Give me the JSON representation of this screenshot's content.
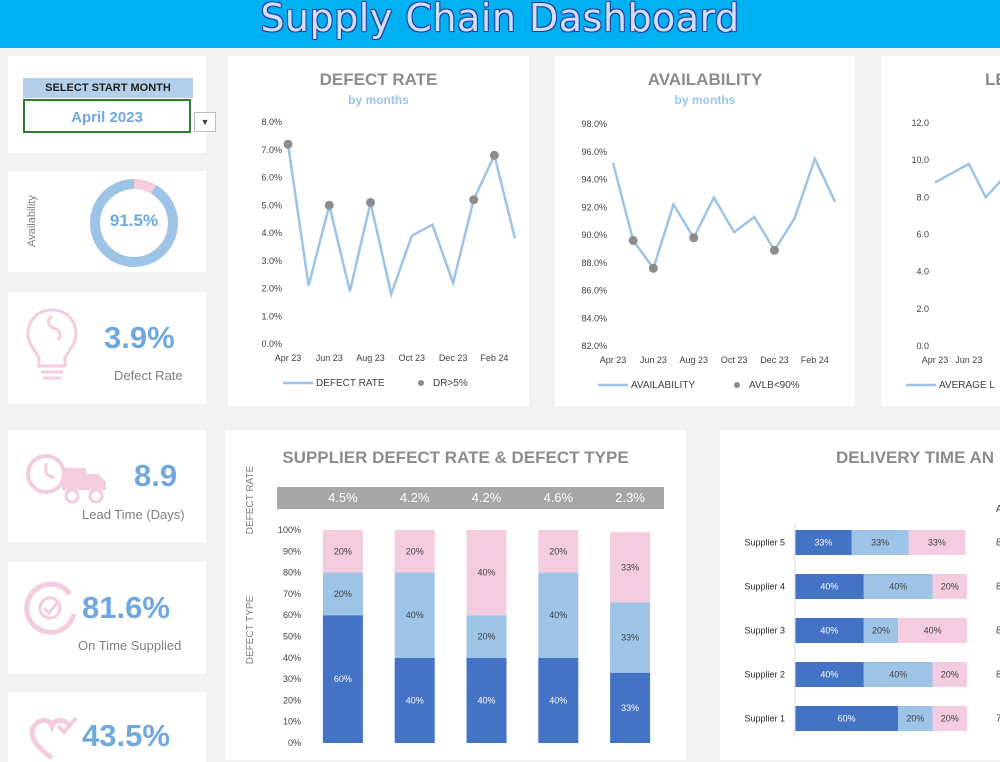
{
  "header": {
    "title": "Supply Chain Dashboard"
  },
  "selector": {
    "label": "SELECT START MONTH",
    "value": "April 2023"
  },
  "kpis": {
    "availability": {
      "label": "Availability",
      "value": "91.5%",
      "fraction": 0.915
    },
    "defect_rate": {
      "label": "Defect Rate",
      "value": "3.9%"
    },
    "lead_time": {
      "label": "Lead Time (Days)",
      "value": "8.9"
    },
    "on_time": {
      "label": "On Time Supplied",
      "value": "81.6%"
    },
    "fourth": {
      "value": "43.5%"
    }
  },
  "colors": {
    "header": "#00b0f0",
    "blue": "#9dc3e6",
    "dark_blue": "#4472c4",
    "pink": "#f4cce0",
    "gray_marker": "#8c8c8c"
  },
  "icons": [
    "bulb-icon",
    "clock-truck-icon",
    "clock-check-icon",
    "dropdown-arrow-icon"
  ],
  "chart_data": [
    {
      "type": "line",
      "title": "DEFECT RATE",
      "subtitle": "by months",
      "x_ticks": [
        "Apr 23",
        "Jun 23",
        "Aug 23",
        "Oct 23",
        "Dec 23",
        "Feb 24"
      ],
      "y_ticks": [
        "8.0%",
        "7.0%",
        "6.0%",
        "5.0%",
        "4.0%",
        "3.0%",
        "2.0%",
        "1.0%",
        "0.0%"
      ],
      "ylim": [
        0,
        8
      ],
      "values": [
        7.2,
        2.1,
        5.0,
        1.9,
        5.1,
        1.8,
        3.9,
        4.3,
        2.2,
        5.2,
        6.8,
        3.8
      ],
      "marker_threshold": 5,
      "legend": [
        "DEFECT RATE",
        "DR>5%"
      ]
    },
    {
      "type": "line",
      "title": "AVAILABILITY",
      "subtitle": "by months",
      "x_ticks": [
        "Apr 23",
        "Jun 23",
        "Aug 23",
        "Oct 23",
        "Dec 23",
        "Feb 24"
      ],
      "y_ticks": [
        "98.0%",
        "96.0%",
        "94.0%",
        "92.0%",
        "90.0%",
        "88.0%",
        "86.0%",
        "84.0%",
        "82.0%"
      ],
      "ylim": [
        82,
        98
      ],
      "values": [
        95.2,
        89.6,
        87.6,
        92.2,
        89.8,
        92.7,
        90.2,
        91.3,
        88.9,
        91.2,
        95.5,
        92.4
      ],
      "marker_below": 90,
      "legend": [
        "AVAILABILITY",
        "AVLB<90%"
      ]
    },
    {
      "type": "line",
      "title": "LE",
      "x_ticks": [
        "Apr 23",
        "Jun 23"
      ],
      "y_ticks": [
        "12.0",
        "10.0",
        "8.0",
        "6.0",
        "4.0",
        "2.0",
        "0.0"
      ],
      "ylim": [
        0,
        12
      ],
      "values": [
        8.8,
        9.3,
        9.8,
        8.0,
        9.0
      ],
      "legend": [
        "AVERAGE L"
      ]
    },
    {
      "type": "bar",
      "title": "SUPPLIER DEFECT RATE & DEFECT TYPE",
      "ylabel_top": "DEFECT RATE",
      "ylabel": "DEFECT TYPE",
      "defect_rates": [
        "4.5%",
        "4.2%",
        "4.2%",
        "4.6%",
        "2.3%"
      ],
      "y_ticks": [
        "100%",
        "90%",
        "80%",
        "70%",
        "60%",
        "50%",
        "40%",
        "30%",
        "20%",
        "10%",
        "0%"
      ],
      "series": [
        {
          "values": [
            60,
            40,
            40,
            40,
            33
          ],
          "labels": [
            "60%",
            "40%",
            "40%",
            "40%",
            "33%"
          ]
        },
        {
          "values": [
            20,
            40,
            20,
            40,
            33
          ],
          "labels": [
            "20%",
            "40%",
            "20%",
            "40%",
            "33%"
          ]
        },
        {
          "values": [
            20,
            20,
            40,
            20,
            33
          ],
          "labels": [
            "20%",
            "20%",
            "40%",
            "20%",
            "33%"
          ]
        }
      ]
    },
    {
      "type": "bar",
      "orientation": "horizontal",
      "title": "DELIVERY TIME AN",
      "categories": [
        "Supplier 5",
        "Supplier 4",
        "Supplier 3",
        "Supplier 2",
        "Supplier 1"
      ],
      "series": [
        {
          "values": [
            33,
            40,
            40,
            40,
            60
          ],
          "labels": [
            "33%",
            "40%",
            "40%",
            "40%",
            "60%"
          ]
        },
        {
          "values": [
            33,
            40,
            20,
            40,
            20
          ],
          "labels": [
            "33%",
            "40%",
            "20%",
            "40%",
            "20%"
          ]
        },
        {
          "values": [
            33,
            20,
            40,
            20,
            20
          ],
          "labels": [
            "33%",
            "20%",
            "40%",
            "20%",
            "20%"
          ]
        }
      ],
      "right_values": [
        "8",
        "8",
        "8",
        "8",
        "7"
      ],
      "right_header": "A"
    }
  ]
}
